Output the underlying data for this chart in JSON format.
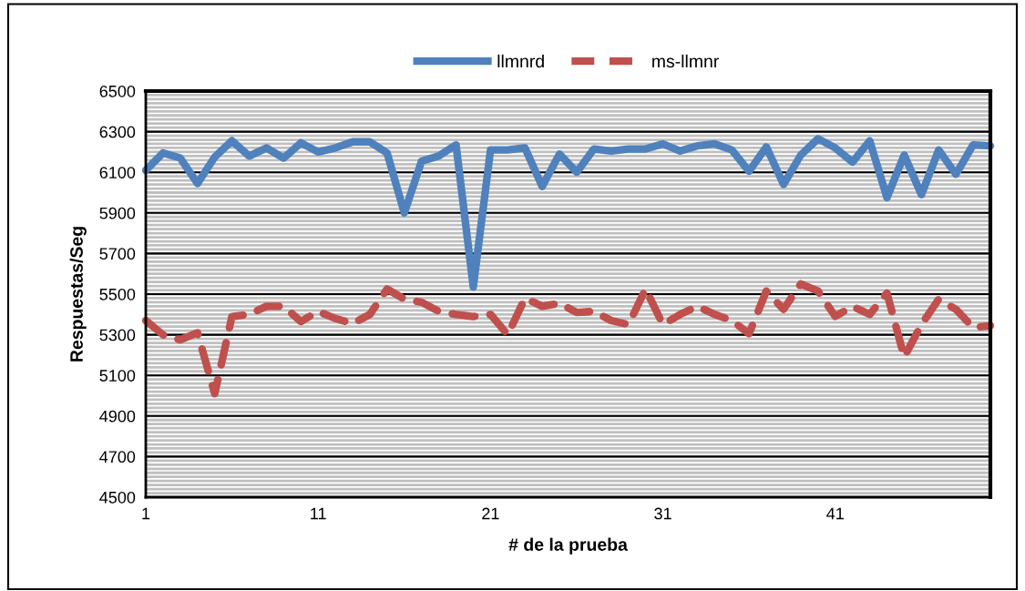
{
  "chart_data": {
    "type": "line",
    "xlabel": "# de la prueba",
    "ylabel": "Respuestas/Seg",
    "x": [
      1,
      2,
      3,
      4,
      5,
      6,
      7,
      8,
      9,
      10,
      11,
      12,
      13,
      14,
      15,
      16,
      17,
      18,
      19,
      20,
      21,
      22,
      23,
      24,
      25,
      26,
      27,
      28,
      29,
      30,
      31,
      32,
      33,
      34,
      35,
      36,
      37,
      38,
      39,
      40,
      41,
      42,
      43,
      44,
      45,
      46,
      47,
      48,
      49,
      50
    ],
    "series": [
      {
        "name": "llmnrd",
        "color": "#4f81bd",
        "line_style": "solid",
        "values": [
          6110,
          6195,
          6170,
          6045,
          6175,
          6255,
          6180,
          6220,
          6170,
          6245,
          6200,
          6220,
          6250,
          6250,
          6195,
          5900,
          6155,
          6180,
          6235,
          5535,
          6210,
          6210,
          6220,
          6030,
          6190,
          6100,
          6215,
          6205,
          6215,
          6215,
          6240,
          6205,
          6230,
          6240,
          6210,
          6105,
          6225,
          6040,
          6185,
          6265,
          6220,
          6150,
          6255,
          5975,
          6185,
          5990,
          6210,
          6090,
          6235,
          6230
        ]
      },
      {
        "name": "ms-llmnr",
        "color": "#c0504d",
        "line_style": "dashed",
        "values": [
          5370,
          5300,
          5275,
          5310,
          5010,
          5390,
          5400,
          5440,
          5440,
          5365,
          5415,
          5380,
          5355,
          5400,
          5525,
          5475,
          5460,
          5415,
          5400,
          5390,
          5400,
          5300,
          5480,
          5440,
          5455,
          5410,
          5415,
          5370,
          5350,
          5525,
          5350,
          5400,
          5440,
          5400,
          5370,
          5305,
          5515,
          5425,
          5550,
          5515,
          5390,
          5440,
          5400,
          5505,
          5190,
          5350,
          5475,
          5425,
          5335,
          5345
        ]
      }
    ],
    "xlim": [
      1,
      50
    ],
    "xticks": [
      1,
      11,
      21,
      31,
      41
    ],
    "ylim": [
      4500,
      6500
    ],
    "yticks": [
      4500,
      4700,
      4900,
      5100,
      5300,
      5500,
      5700,
      5900,
      6100,
      6300,
      6500
    ],
    "grid": "y",
    "legend": "top",
    "marker": "none"
  }
}
